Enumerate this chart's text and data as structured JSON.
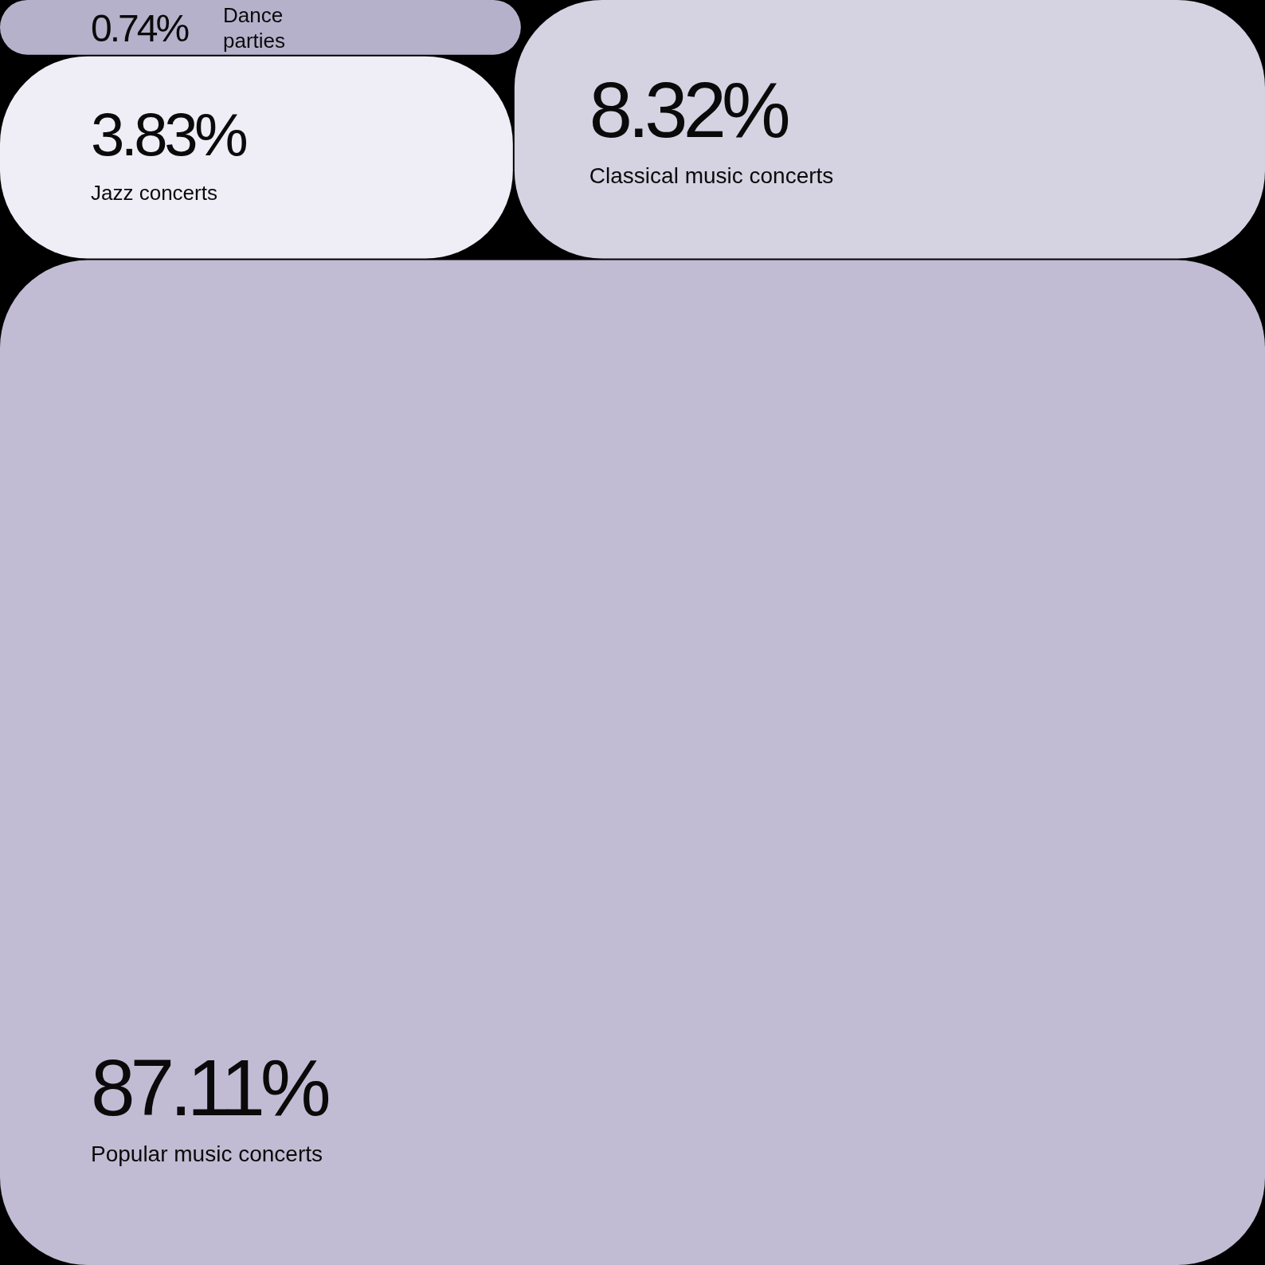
{
  "chart_data": {
    "type": "other",
    "categories": [
      "Dance parties",
      "Jazz concerts",
      "Classical music concerts",
      "Popular music concerts"
    ],
    "values": [
      0.74,
      3.83,
      8.32,
      87.11
    ],
    "value_labels": [
      "0.74%",
      "3.83%",
      "8.32%",
      "87.11%"
    ],
    "colors": [
      "#b6b1cb",
      "#efeef6",
      "#d5d3e1",
      "#c1bcd3"
    ]
  }
}
